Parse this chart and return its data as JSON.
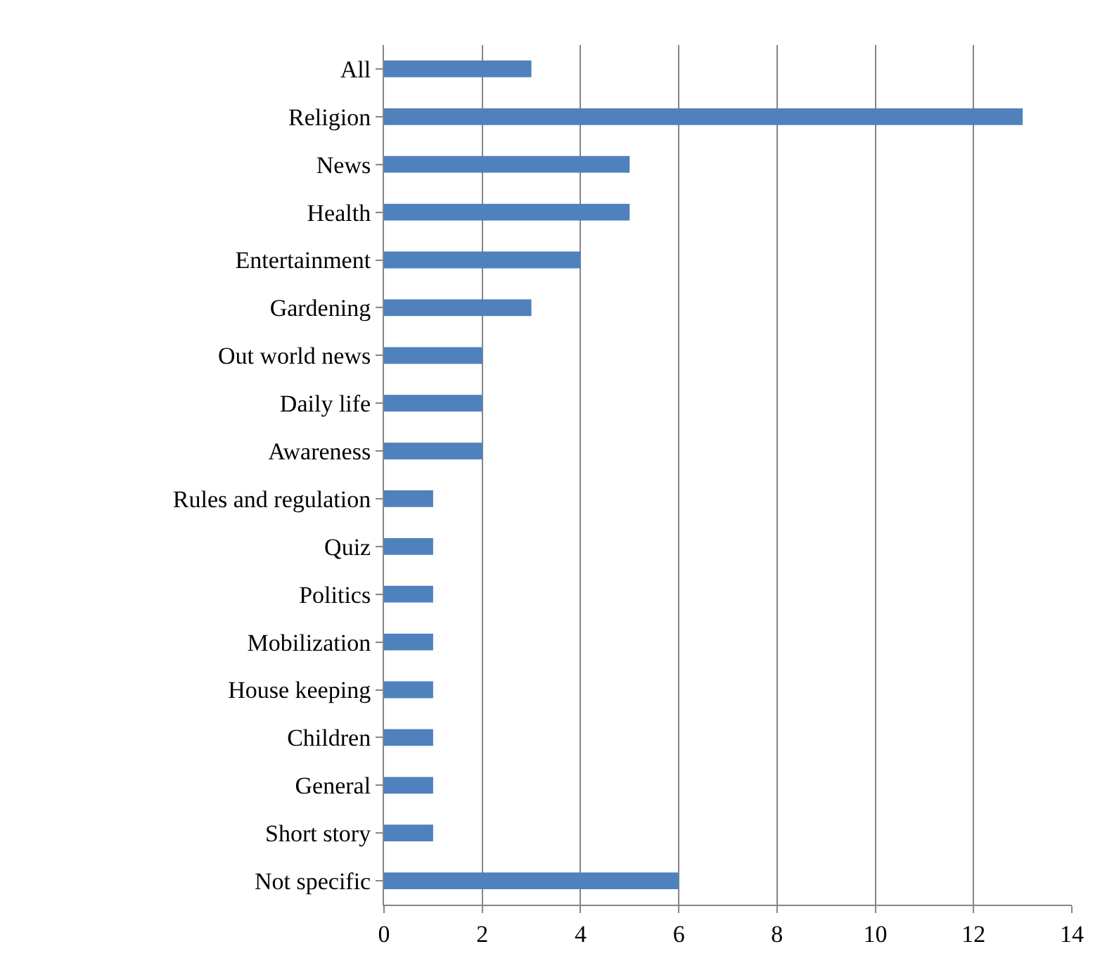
{
  "chart_data": {
    "type": "bar",
    "orientation": "horizontal",
    "categories": [
      "All",
      "Religion",
      "News",
      "Health",
      "Entertainment",
      "Gardening",
      "Out world news",
      "Daily life",
      "Awareness",
      "Rules and regulation",
      "Quiz",
      "Politics",
      "Mobilization",
      "House keeping",
      "Children",
      "General",
      "Short story",
      "Not specific"
    ],
    "values": [
      3,
      13,
      5,
      5,
      4,
      3,
      2,
      2,
      2,
      1,
      1,
      1,
      1,
      1,
      1,
      1,
      1,
      6
    ],
    "color": "#4f81bd",
    "xlim": [
      0,
      14
    ],
    "xticks": [
      0,
      2,
      4,
      6,
      8,
      10,
      12,
      14
    ],
    "grid": "x",
    "legend": false
  }
}
